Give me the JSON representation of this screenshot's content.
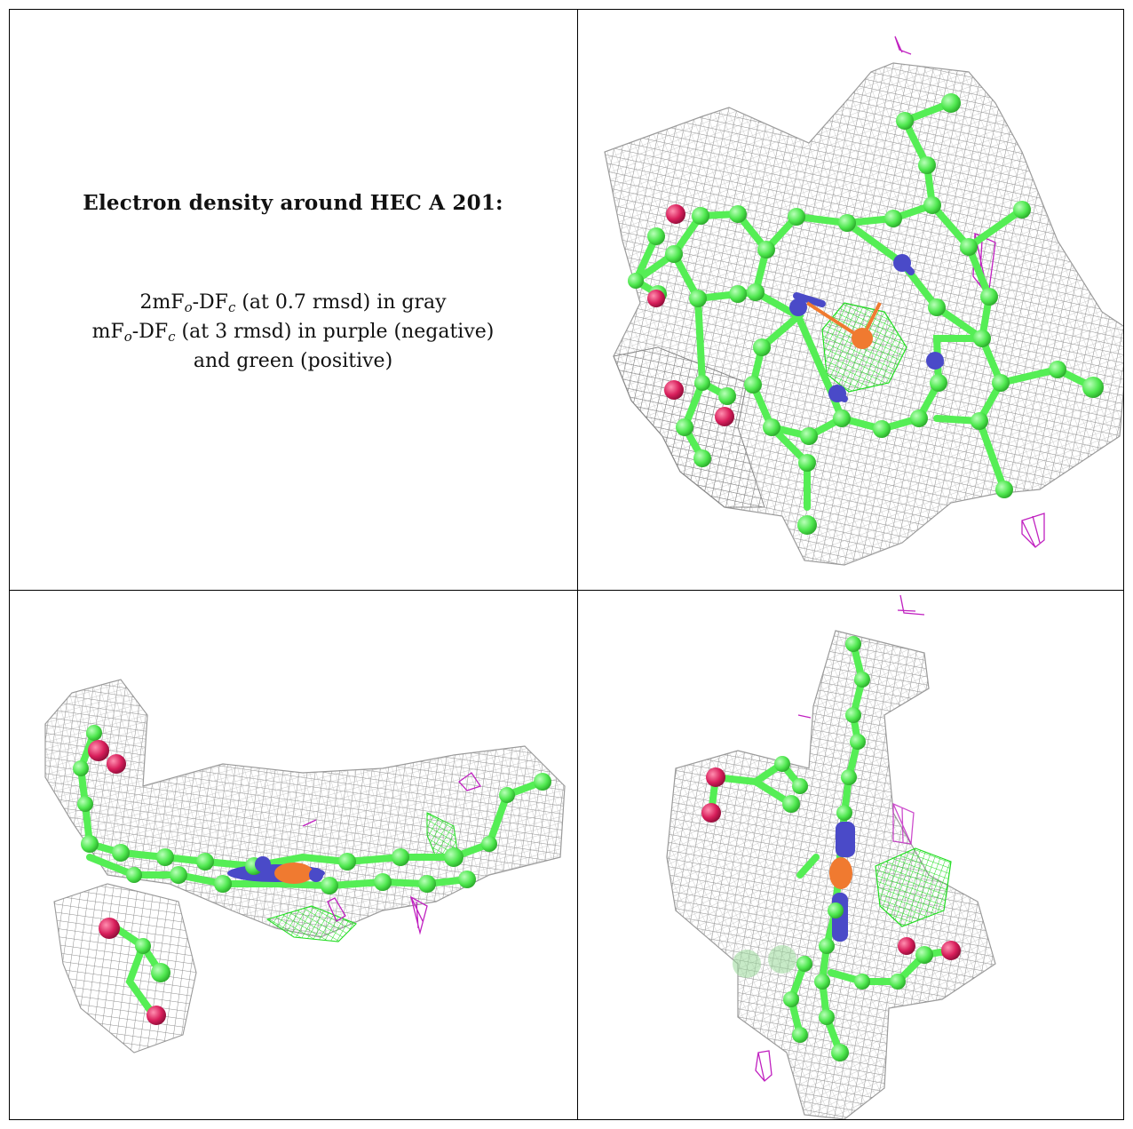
{
  "caption": {
    "title": "Electron density around HEC A 201:",
    "line1": {
      "prefix": "2mF",
      "sub1": "o",
      "mid": "-DF",
      "sub2": "c",
      "suffix": " (at 0.7 rmsd) in gray"
    },
    "line2": {
      "prefix": "mF",
      "sub1": "o",
      "mid": "-DF",
      "sub2": "c",
      "suffix": " (at 3 rmsd) in purple (negative)"
    },
    "line3": "and green (positive)"
  },
  "colors": {
    "mesh_2fofc": "#9a9a9a",
    "mesh_negative": "#c020c0",
    "mesh_positive": "#2ee62e",
    "carbon": "#55ee55",
    "nitrogen": "#4a4ac8",
    "oxygen": "#d81e5b",
    "iron": "#f07a30"
  },
  "panels": [
    {
      "id": "top-right",
      "view": "face-on"
    },
    {
      "id": "bottom-left",
      "view": "edge-on"
    },
    {
      "id": "bottom-right",
      "view": "side"
    }
  ]
}
